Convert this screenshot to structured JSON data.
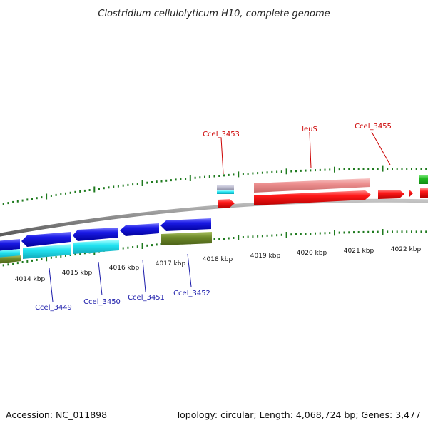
{
  "title": "Clostridium cellulolyticum H10, complete genome",
  "footer": {
    "accession": "Accession: NC_011898",
    "info": "Topology: circular; Length: 4,068,724 bp; Genes: 3,477"
  },
  "kbp_labels": [
    "4014 kbp",
    "4015 kbp",
    "4016 kbp",
    "4017 kbp",
    "4018 kbp",
    "4019 kbp",
    "4020 kbp",
    "4021 kbp",
    "4022 kbp"
  ],
  "gene_labels_top": [
    "Ccel_3453",
    "leuS",
    "Ccel_3455"
  ],
  "gene_labels_bottom": [
    "Ccel_3449",
    "Ccel_3450",
    "Ccel_3451",
    "Ccel_3452"
  ],
  "colors": {
    "backbone": "#8a8a8a",
    "tick": "#1e7a1e",
    "red_gene": "#ee1111",
    "pink_gene": "#e88a8a",
    "blue_gene": "#1a1ae6",
    "cyan_gene": "#22e0f0",
    "olive_gene": "#6e8a2a",
    "green_gene": "#22bb22",
    "label_red": "#cc0000",
    "label_blue": "#1a1aaa"
  }
}
